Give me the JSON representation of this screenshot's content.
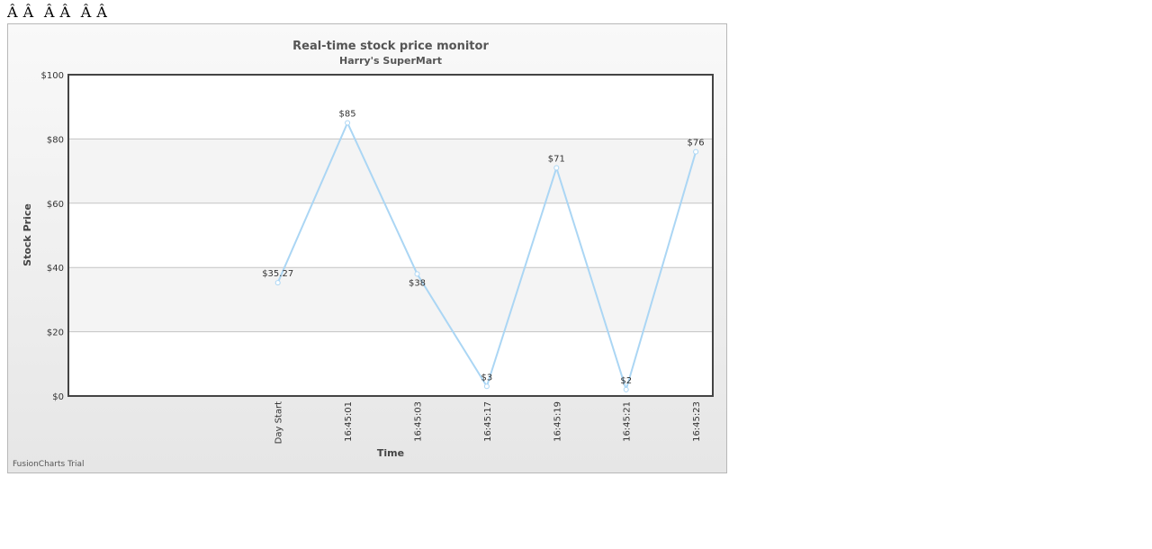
{
  "page": {
    "top_text": "Â Â  Â Â  Â Â"
  },
  "watermark": "FusionCharts Trial",
  "chart_data": {
    "type": "line",
    "title": "Real-time stock price monitor",
    "subtitle": "Harry's SuperMart",
    "xlabel": "Time",
    "ylabel": "Stock Price",
    "ylim": [
      0,
      100
    ],
    "ytick_values": [
      0,
      20,
      40,
      60,
      80,
      100
    ],
    "ytick_labels": [
      "$0",
      "$20",
      "$40",
      "$60",
      "$80",
      "$100"
    ],
    "grid": true,
    "categories": [
      "Day Start",
      "16:45:01",
      "16:45:03",
      "16:45:17",
      "16:45:19",
      "16:45:21",
      "16:45:23"
    ],
    "series": [
      {
        "values": [
          35.27,
          85,
          38,
          3,
          71,
          2,
          76
        ],
        "data_labels": [
          "$35.27",
          "$85",
          "$38",
          "$3",
          "$71",
          "$2",
          "$76"
        ]
      }
    ],
    "line_color": "#abd6f4",
    "alternate_band_color": "#f4f4f4"
  }
}
